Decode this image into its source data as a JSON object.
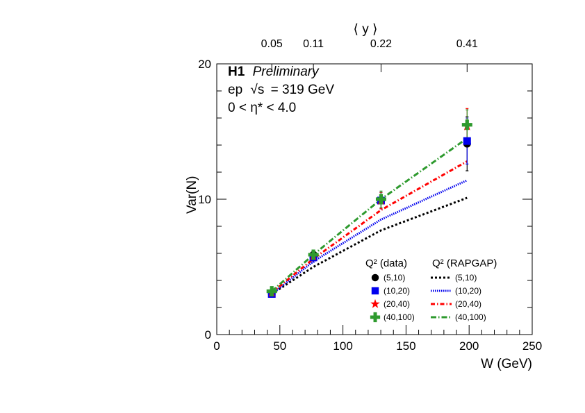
{
  "chart_data": {
    "type": "line",
    "annotations": {
      "experiment": "H1",
      "status": "Preliminary",
      "process": "ep",
      "sqrt": "√s",
      "energy": "= 319 GeV",
      "eta_range": "0 < η* < 4.0"
    },
    "xlabel": "W (GeV)",
    "ylabel": "Var(N)",
    "top_axis": {
      "label": "⟨ y ⟩",
      "ticks": [
        {
          "label": "0.05",
          "w": 43.6
        },
        {
          "label": "0.11",
          "w": 76.6
        },
        {
          "label": "0.22",
          "w": 130.2
        },
        {
          "label": "0.41",
          "w": 198.4
        }
      ]
    },
    "xlim": [
      0,
      250
    ],
    "ylim": [
      0,
      20
    ],
    "xticks": [
      0,
      50,
      100,
      150,
      200,
      250
    ],
    "yticks": [
      0,
      10,
      20
    ],
    "x_minor_step": 10,
    "y_minor_step": 2,
    "x": [
      43.6,
      76.6,
      130.2,
      198.4
    ],
    "data_series": [
      {
        "label": "(5,10)",
        "marker": "circle",
        "color": "#000000",
        "values": [
          3.0,
          5.9,
          9.9,
          14.1
        ],
        "errors": [
          0.15,
          0.35,
          0.6,
          2.0
        ]
      },
      {
        "label": "(10,20)",
        "marker": "square",
        "color": "#0000ee",
        "values": [
          3.0,
          5.7,
          9.9,
          14.3
        ],
        "errors": [
          0.15,
          0.35,
          0.6,
          1.7
        ]
      },
      {
        "label": "(20,40)",
        "marker": "star",
        "color": "#ff0000",
        "values": [
          3.1,
          5.8,
          9.9,
          15.4
        ],
        "errors": [
          0.15,
          0.35,
          0.6,
          1.3
        ]
      },
      {
        "label": "(40,100)",
        "marker": "cross",
        "color": "#2e9a2e",
        "values": [
          3.2,
          5.9,
          10.0,
          15.5
        ],
        "errors": [
          0.15,
          0.35,
          0.6,
          1.1
        ]
      }
    ],
    "model_series": [
      {
        "label": "(5,10)",
        "dash": "3,3",
        "color": "#000000",
        "values": [
          3.0,
          5.0,
          7.7,
          10.1
        ]
      },
      {
        "label": "(10,20)",
        "dash": "1.5,1.5",
        "color": "#0000ee",
        "values": [
          3.0,
          5.4,
          8.5,
          11.4
        ]
      },
      {
        "label": "(20,40)",
        "dash": "6,3,1.5,3",
        "color": "#ff0000",
        "values": [
          3.1,
          5.6,
          9.2,
          12.8
        ]
      },
      {
        "label": "(40,100)",
        "dash": "8,3,1.5,3",
        "color": "#2e9a2e",
        "values": [
          3.2,
          5.9,
          10.0,
          14.5
        ]
      }
    ],
    "legend": {
      "placement": "bottom-right",
      "data_title": "Q² (data)",
      "model_title": "Q² (RAPGAP)"
    }
  }
}
